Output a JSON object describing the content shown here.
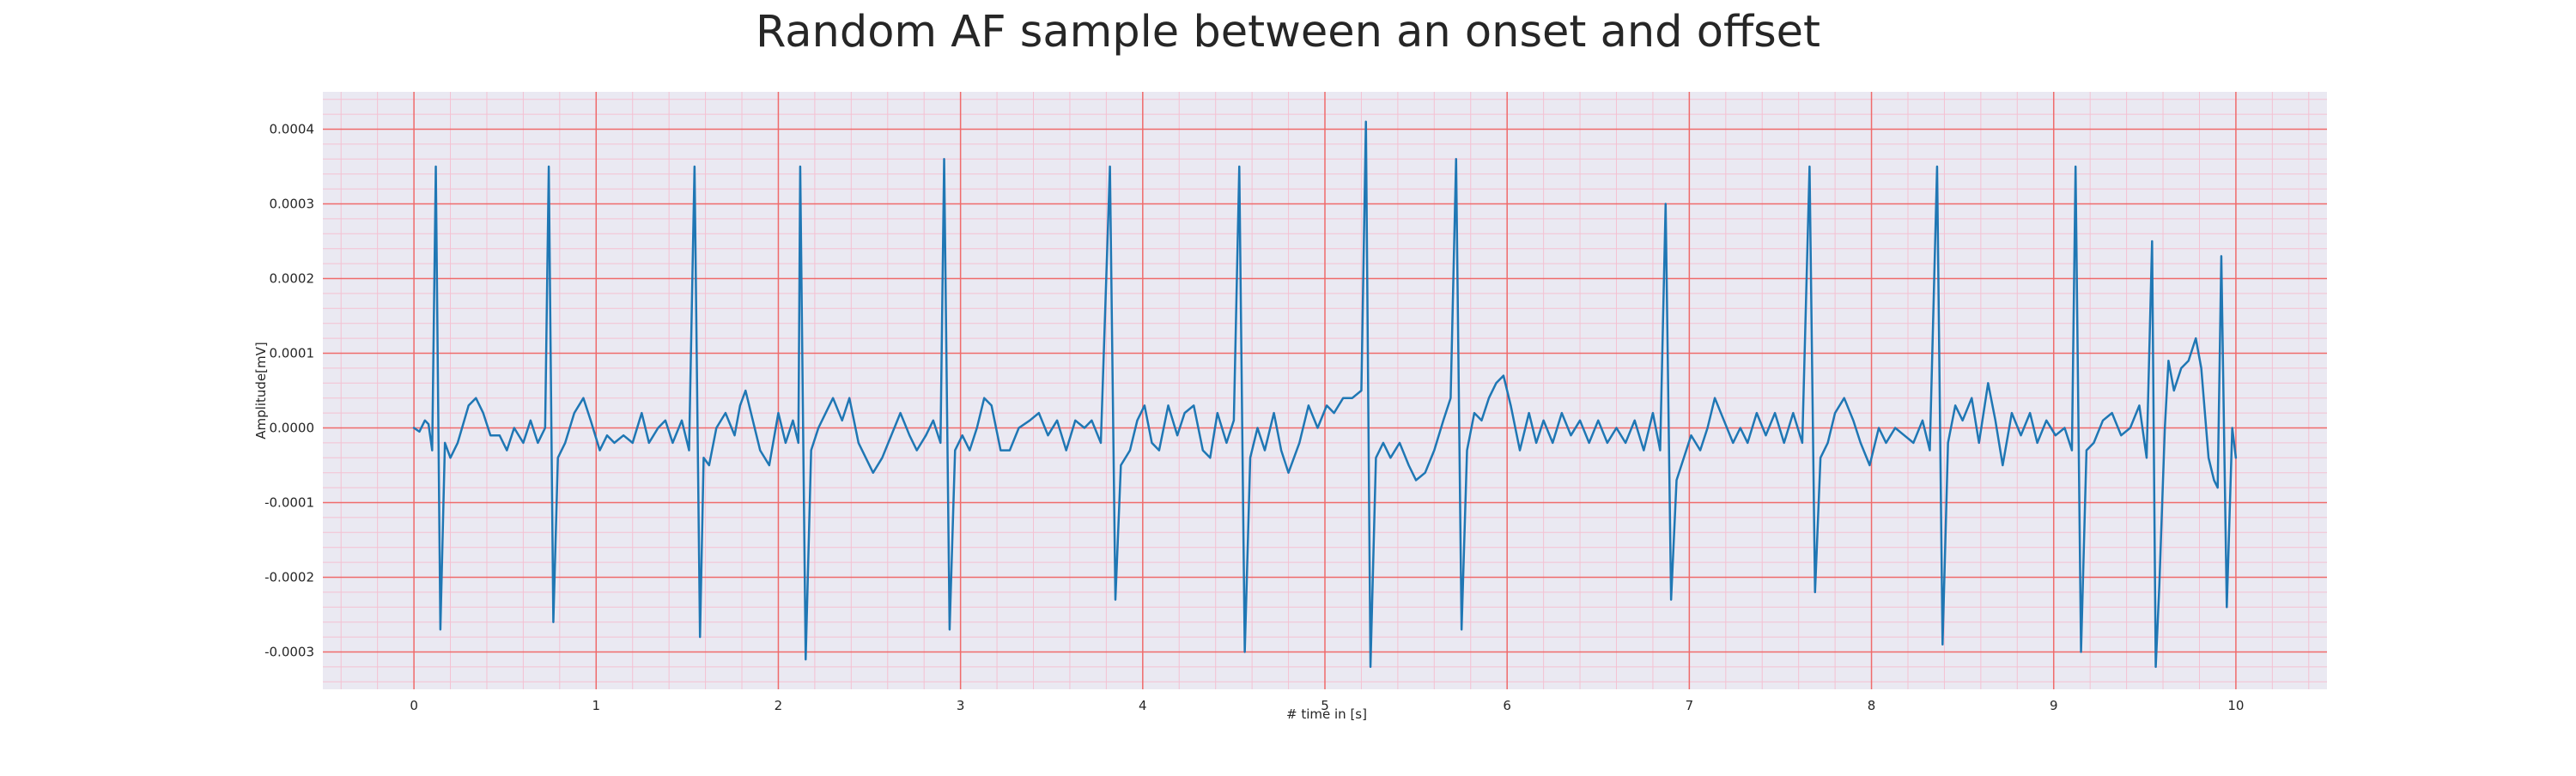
{
  "chart_data": {
    "type": "line",
    "title": "Random AF sample between an onset and offset",
    "xlabel": "# time in [s]",
    "ylabel": "Amplitude[mV]",
    "xlim": [
      -0.5,
      10.5
    ],
    "ylim": [
      -0.00035,
      0.00045
    ],
    "x_ticks": [
      0,
      1,
      2,
      3,
      4,
      5,
      6,
      7,
      8,
      9,
      10
    ],
    "x_tick_labels": [
      "0",
      "1",
      "2",
      "3",
      "4",
      "5",
      "6",
      "7",
      "8",
      "9",
      "10"
    ],
    "y_ticks": [
      -0.0003,
      -0.0002,
      -0.0001,
      0.0,
      0.0001,
      0.0002,
      0.0003,
      0.0004
    ],
    "y_tick_labels": [
      "-0.0003",
      "-0.0002",
      "-0.0001",
      "0.0000",
      "0.0001",
      "0.0002",
      "0.0003",
      "0.0004"
    ],
    "grid": {
      "major": true,
      "minor": true,
      "major_x_step": 1,
      "major_y_step": 0.0001,
      "minor_x_step": 0.2,
      "minor_y_step": 2e-05,
      "major_color": "#ef6b6b",
      "minor_color": "#f4c1d2"
    },
    "background_color": "#eae9f2",
    "series": [
      {
        "color": "#1f77b4",
        "points": [
          [
            0.0,
            0.0
          ],
          [
            0.03,
            -5e-06
          ],
          [
            0.06,
            1e-05
          ],
          [
            0.08,
            5e-06
          ],
          [
            0.1,
            -3e-05
          ],
          [
            0.12,
            0.00035
          ],
          [
            0.145,
            -0.00027
          ],
          [
            0.17,
            -2e-05
          ],
          [
            0.2,
            -4e-05
          ],
          [
            0.24,
            -2e-05
          ],
          [
            0.3,
            3e-05
          ],
          [
            0.34,
            4e-05
          ],
          [
            0.38,
            2e-05
          ],
          [
            0.42,
            -1e-05
          ],
          [
            0.47,
            -1e-05
          ],
          [
            0.51,
            -3e-05
          ],
          [
            0.55,
            0.0
          ],
          [
            0.6,
            -2e-05
          ],
          [
            0.64,
            1e-05
          ],
          [
            0.68,
            -2e-05
          ],
          [
            0.72,
            0.0
          ],
          [
            0.74,
            0.00035
          ],
          [
            0.765,
            -0.00026
          ],
          [
            0.79,
            -4e-05
          ],
          [
            0.83,
            -2e-05
          ],
          [
            0.88,
            2e-05
          ],
          [
            0.93,
            4e-05
          ],
          [
            0.97,
            1e-05
          ],
          [
            1.02,
            -3e-05
          ],
          [
            1.06,
            -1e-05
          ],
          [
            1.1,
            -2e-05
          ],
          [
            1.15,
            -1e-05
          ],
          [
            1.2,
            -2e-05
          ],
          [
            1.25,
            2e-05
          ],
          [
            1.29,
            -2e-05
          ],
          [
            1.34,
            0.0
          ],
          [
            1.38,
            1e-05
          ],
          [
            1.42,
            -2e-05
          ],
          [
            1.47,
            1e-05
          ],
          [
            1.51,
            -3e-05
          ],
          [
            1.54,
            0.00035
          ],
          [
            1.57,
            -0.00028
          ],
          [
            1.59,
            -4e-05
          ],
          [
            1.62,
            -5e-05
          ],
          [
            1.66,
            0.0
          ],
          [
            1.71,
            2e-05
          ],
          [
            1.76,
            -1e-05
          ],
          [
            1.79,
            3e-05
          ],
          [
            1.82,
            5e-05
          ],
          [
            1.86,
            1e-05
          ],
          [
            1.9,
            -3e-05
          ],
          [
            1.95,
            -5e-05
          ],
          [
            2.0,
            2e-05
          ],
          [
            2.04,
            -2e-05
          ],
          [
            2.08,
            1e-05
          ],
          [
            2.11,
            -2e-05
          ],
          [
            2.12,
            0.00035
          ],
          [
            2.15,
            -0.00031
          ],
          [
            2.18,
            -3e-05
          ],
          [
            2.22,
            0.0
          ],
          [
            2.26,
            2e-05
          ],
          [
            2.3,
            4e-05
          ],
          [
            2.35,
            1e-05
          ],
          [
            2.39,
            4e-05
          ],
          [
            2.44,
            -2e-05
          ],
          [
            2.48,
            -4e-05
          ],
          [
            2.52,
            -6e-05
          ],
          [
            2.57,
            -4e-05
          ],
          [
            2.62,
            -1e-05
          ],
          [
            2.67,
            2e-05
          ],
          [
            2.72,
            -1e-05
          ],
          [
            2.76,
            -3e-05
          ],
          [
            2.81,
            -1e-05
          ],
          [
            2.85,
            1e-05
          ],
          [
            2.89,
            -2e-05
          ],
          [
            2.91,
            0.00036
          ],
          [
            2.94,
            -0.00027
          ],
          [
            2.97,
            -3e-05
          ],
          [
            3.01,
            -1e-05
          ],
          [
            3.05,
            -3e-05
          ],
          [
            3.09,
            0.0
          ],
          [
            3.13,
            4e-05
          ],
          [
            3.17,
            3e-05
          ],
          [
            3.22,
            -3e-05
          ],
          [
            3.27,
            -3e-05
          ],
          [
            3.32,
            0.0
          ],
          [
            3.38,
            1e-05
          ],
          [
            3.43,
            2e-05
          ],
          [
            3.48,
            -1e-05
          ],
          [
            3.53,
            1e-05
          ],
          [
            3.58,
            -3e-05
          ],
          [
            3.63,
            1e-05
          ],
          [
            3.68,
            0.0
          ],
          [
            3.72,
            1e-05
          ],
          [
            3.77,
            -2e-05
          ],
          [
            3.82,
            0.00035
          ],
          [
            3.85,
            -0.00023
          ],
          [
            3.88,
            -5e-05
          ],
          [
            3.93,
            -3e-05
          ],
          [
            3.97,
            1e-05
          ],
          [
            4.01,
            3e-05
          ],
          [
            4.05,
            -2e-05
          ],
          [
            4.09,
            -3e-05
          ],
          [
            4.14,
            3e-05
          ],
          [
            4.19,
            -1e-05
          ],
          [
            4.23,
            2e-05
          ],
          [
            4.28,
            3e-05
          ],
          [
            4.33,
            -3e-05
          ],
          [
            4.37,
            -4e-05
          ],
          [
            4.41,
            2e-05
          ],
          [
            4.46,
            -2e-05
          ],
          [
            4.5,
            1e-05
          ],
          [
            4.53,
            0.00035
          ],
          [
            4.56,
            -0.0003
          ],
          [
            4.59,
            -4e-05
          ],
          [
            4.63,
            0.0
          ],
          [
            4.67,
            -3e-05
          ],
          [
            4.72,
            2e-05
          ],
          [
            4.76,
            -3e-05
          ],
          [
            4.8,
            -6e-05
          ],
          [
            4.86,
            -2e-05
          ],
          [
            4.91,
            3e-05
          ],
          [
            4.96,
            0.0
          ],
          [
            5.01,
            3e-05
          ],
          [
            5.05,
            2e-05
          ],
          [
            5.1,
            4e-05
          ],
          [
            5.15,
            4e-05
          ],
          [
            5.2,
            5e-05
          ],
          [
            5.225,
            0.00041
          ],
          [
            5.25,
            -0.00032
          ],
          [
            5.28,
            -4e-05
          ],
          [
            5.32,
            -2e-05
          ],
          [
            5.36,
            -4e-05
          ],
          [
            5.41,
            -2e-05
          ],
          [
            5.46,
            -5e-05
          ],
          [
            5.5,
            -7e-05
          ],
          [
            5.55,
            -6e-05
          ],
          [
            5.6,
            -3e-05
          ],
          [
            5.65,
            1e-05
          ],
          [
            5.69,
            4e-05
          ],
          [
            5.72,
            0.00036
          ],
          [
            5.75,
            -0.00027
          ],
          [
            5.78,
            -3e-05
          ],
          [
            5.82,
            2e-05
          ],
          [
            5.86,
            1e-05
          ],
          [
            5.9,
            4e-05
          ],
          [
            5.94,
            6e-05
          ],
          [
            5.98,
            7e-05
          ],
          [
            6.02,
            3e-05
          ],
          [
            6.07,
            -3e-05
          ],
          [
            6.12,
            2e-05
          ],
          [
            6.16,
            -2e-05
          ],
          [
            6.2,
            1e-05
          ],
          [
            6.25,
            -2e-05
          ],
          [
            6.3,
            2e-05
          ],
          [
            6.35,
            -1e-05
          ],
          [
            6.4,
            1e-05
          ],
          [
            6.45,
            -2e-05
          ],
          [
            6.5,
            1e-05
          ],
          [
            6.55,
            -2e-05
          ],
          [
            6.6,
            0.0
          ],
          [
            6.65,
            -2e-05
          ],
          [
            6.7,
            1e-05
          ],
          [
            6.75,
            -3e-05
          ],
          [
            6.8,
            2e-05
          ],
          [
            6.84,
            -3e-05
          ],
          [
            6.87,
            0.0003
          ],
          [
            6.9,
            -0.00023
          ],
          [
            6.93,
            -7e-05
          ],
          [
            6.97,
            -4e-05
          ],
          [
            7.01,
            -1e-05
          ],
          [
            7.06,
            -3e-05
          ],
          [
            7.1,
            0.0
          ],
          [
            7.14,
            4e-05
          ],
          [
            7.19,
            1e-05
          ],
          [
            7.24,
            -2e-05
          ],
          [
            7.28,
            0.0
          ],
          [
            7.32,
            -2e-05
          ],
          [
            7.37,
            2e-05
          ],
          [
            7.42,
            -1e-05
          ],
          [
            7.47,
            2e-05
          ],
          [
            7.52,
            -2e-05
          ],
          [
            7.57,
            2e-05
          ],
          [
            7.62,
            -2e-05
          ],
          [
            7.66,
            0.00035
          ],
          [
            7.69,
            -0.00022
          ],
          [
            7.72,
            -4e-05
          ],
          [
            7.76,
            -2e-05
          ],
          [
            7.8,
            2e-05
          ],
          [
            7.85,
            4e-05
          ],
          [
            7.9,
            1e-05
          ],
          [
            7.94,
            -2e-05
          ],
          [
            7.99,
            -5e-05
          ],
          [
            8.04,
            0.0
          ],
          [
            8.08,
            -2e-05
          ],
          [
            8.13,
            0.0
          ],
          [
            8.18,
            -1e-05
          ],
          [
            8.23,
            -2e-05
          ],
          [
            8.28,
            1e-05
          ],
          [
            8.32,
            -3e-05
          ],
          [
            8.36,
            0.00035
          ],
          [
            8.39,
            -0.00029
          ],
          [
            8.42,
            -2e-05
          ],
          [
            8.46,
            3e-05
          ],
          [
            8.5,
            1e-05
          ],
          [
            8.55,
            4e-05
          ],
          [
            8.59,
            -2e-05
          ],
          [
            8.64,
            6e-05
          ],
          [
            8.68,
            1e-05
          ],
          [
            8.72,
            -5e-05
          ],
          [
            8.77,
            2e-05
          ],
          [
            8.82,
            -1e-05
          ],
          [
            8.87,
            2e-05
          ],
          [
            8.91,
            -2e-05
          ],
          [
            8.96,
            1e-05
          ],
          [
            9.01,
            -1e-05
          ],
          [
            9.06,
            0.0
          ],
          [
            9.1,
            -3e-05
          ],
          [
            9.12,
            0.00035
          ],
          [
            9.15,
            -0.0003
          ],
          [
            9.18,
            -3e-05
          ],
          [
            9.22,
            -2e-05
          ],
          [
            9.27,
            1e-05
          ],
          [
            9.32,
            2e-05
          ],
          [
            9.37,
            -1e-05
          ],
          [
            9.42,
            0.0
          ],
          [
            9.47,
            3e-05
          ],
          [
            9.51,
            -4e-05
          ],
          [
            9.54,
            0.00025
          ],
          [
            9.56,
            -0.00032
          ],
          [
            9.58,
            -0.00021
          ],
          [
            9.61,
            0.0
          ],
          [
            9.63,
            9e-05
          ],
          [
            9.66,
            5e-05
          ],
          [
            9.7,
            8e-05
          ],
          [
            9.74,
            9e-05
          ],
          [
            9.78,
            0.00012
          ],
          [
            9.81,
            8e-05
          ],
          [
            9.85,
            -4e-05
          ],
          [
            9.88,
            -7e-05
          ],
          [
            9.9,
            -8e-05
          ],
          [
            9.92,
            0.00023
          ],
          [
            9.95,
            -0.00024
          ],
          [
            9.98,
            0.0
          ],
          [
            10.0,
            -4e-05
          ]
        ]
      }
    ]
  }
}
